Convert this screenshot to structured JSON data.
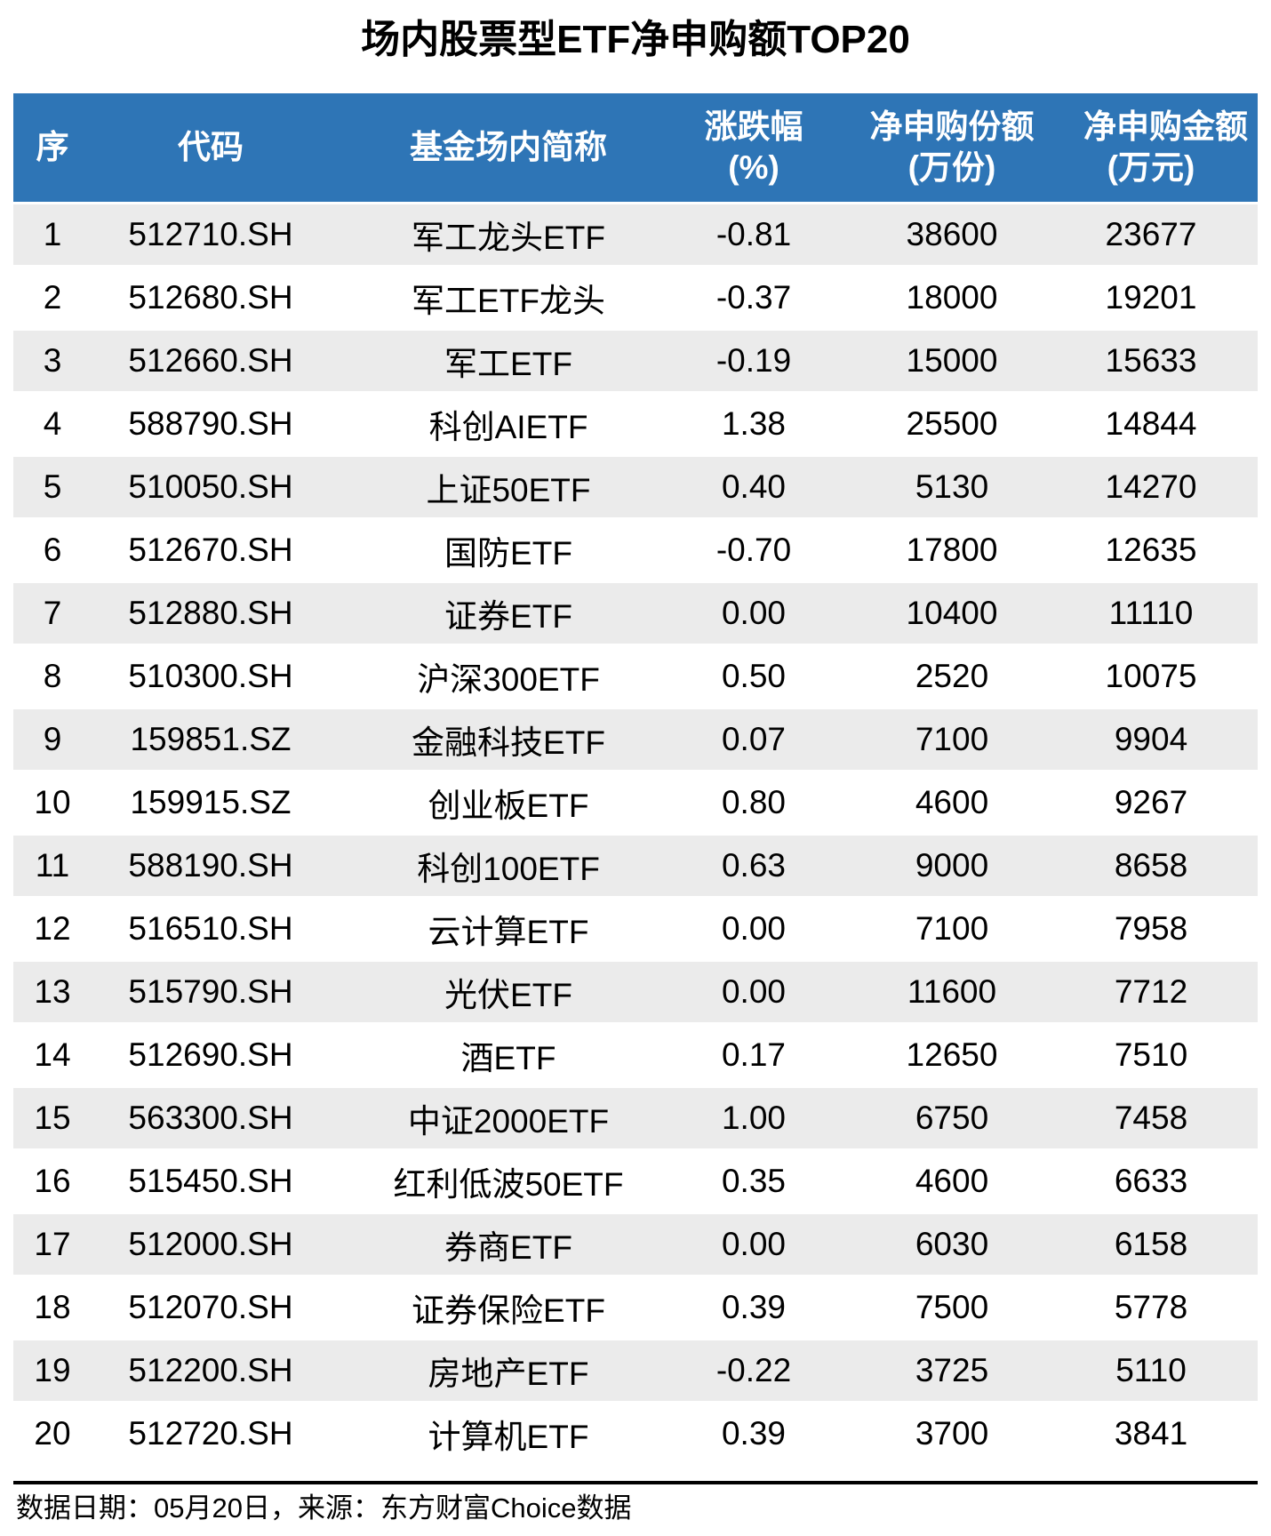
{
  "title": "场内股票型ETF净申购额TOP20",
  "colors": {
    "header_bg": "#2e75b6",
    "header_text": "#ffffff",
    "row_stripe_bg": "#ebebeb",
    "row_bg": "#ffffff",
    "body_text": "#000000",
    "divider": "#000000"
  },
  "header": {
    "cells": [
      {
        "line1": "序",
        "line2": ""
      },
      {
        "line1": "代码",
        "line2": ""
      },
      {
        "line1": "基金场内简称",
        "line2": ""
      },
      {
        "line1": "涨跌幅",
        "line2": "(%)"
      },
      {
        "line1": "净申购份额",
        "line2": "(万份)"
      },
      {
        "line1": "净申购金额",
        "line2": "(万元)"
      }
    ]
  },
  "footer": {
    "note": "数据日期：05月20日，来源：东方财富Choice数据"
  },
  "chart_data": {
    "type": "table",
    "title": "场内股票型ETF净申购额TOP20",
    "columns": [
      "序",
      "代码",
      "基金场内简称",
      "涨跌幅(%)",
      "净申购份额(万份)",
      "净申购金额(万元)"
    ],
    "rows": [
      [
        1,
        "512710.SH",
        "军工龙头ETF",
        "-0.81",
        38600,
        23677
      ],
      [
        2,
        "512680.SH",
        "军工ETF龙头",
        "-0.37",
        18000,
        19201
      ],
      [
        3,
        "512660.SH",
        "军工ETF",
        "-0.19",
        15000,
        15633
      ],
      [
        4,
        "588790.SH",
        "科创AIETF",
        "1.38",
        25500,
        14844
      ],
      [
        5,
        "510050.SH",
        "上证50ETF",
        "0.40",
        5130,
        14270
      ],
      [
        6,
        "512670.SH",
        "国防ETF",
        "-0.70",
        17800,
        12635
      ],
      [
        7,
        "512880.SH",
        "证券ETF",
        "0.00",
        10400,
        11110
      ],
      [
        8,
        "510300.SH",
        "沪深300ETF",
        "0.50",
        2520,
        10075
      ],
      [
        9,
        "159851.SZ",
        "金融科技ETF",
        "0.07",
        7100,
        9904
      ],
      [
        10,
        "159915.SZ",
        "创业板ETF",
        "0.80",
        4600,
        9267
      ],
      [
        11,
        "588190.SH",
        "科创100ETF",
        "0.63",
        9000,
        8658
      ],
      [
        12,
        "516510.SH",
        "云计算ETF",
        "0.00",
        7100,
        7958
      ],
      [
        13,
        "515790.SH",
        "光伏ETF",
        "0.00",
        11600,
        7712
      ],
      [
        14,
        "512690.SH",
        "酒ETF",
        "0.17",
        12650,
        7510
      ],
      [
        15,
        "563300.SH",
        "中证2000ETF",
        "1.00",
        6750,
        7458
      ],
      [
        16,
        "515450.SH",
        "红利低波50ETF",
        "0.35",
        4600,
        6633
      ],
      [
        17,
        "512000.SH",
        "券商ETF",
        "0.00",
        6030,
        6158
      ],
      [
        18,
        "512070.SH",
        "证券保险ETF",
        "0.39",
        7500,
        5778
      ],
      [
        19,
        "512200.SH",
        "房地产ETF",
        "-0.22",
        3725,
        5110
      ],
      [
        20,
        "512720.SH",
        "计算机ETF",
        "0.39",
        3700,
        3841
      ]
    ],
    "source_note": "数据日期：05月20日，来源：东方财富Choice数据",
    "legend_position": "none",
    "grid": false
  }
}
